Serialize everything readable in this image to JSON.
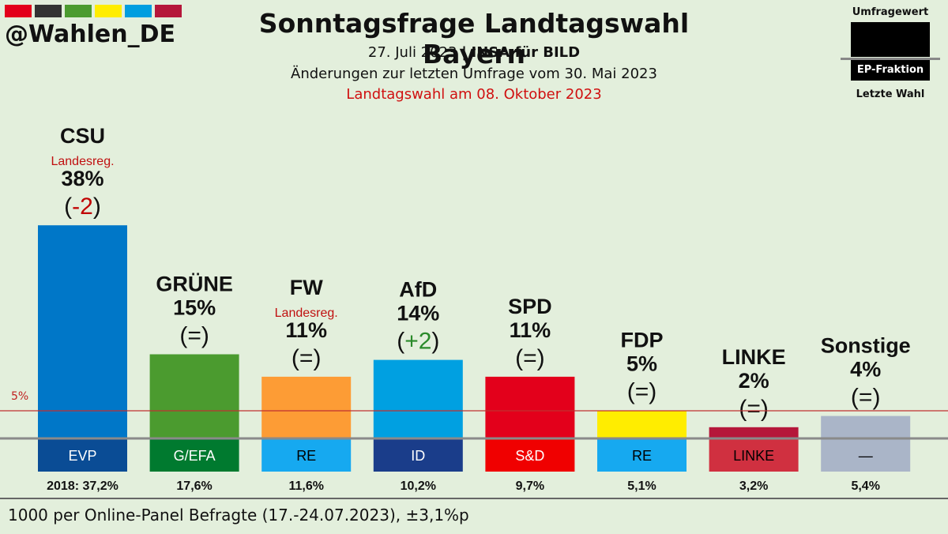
{
  "header": {
    "handle": "@Wahlen_DE",
    "title": "Sonntagsfrage Landtagswahl Bayern",
    "date": "27. Juli 2023",
    "separator": "|",
    "institute": "INSA für BILD",
    "changes": "Änderungen zur letzten Umfrage vom 30. Mai 2023",
    "election": "Landtagswahl am 08. Oktober 2023",
    "stripe_colors": [
      "#e3001b",
      "#333333",
      "#4b9b2f",
      "#ffed00",
      "#009ee0",
      "#b5173a"
    ]
  },
  "legend": {
    "top": "Umfragewert",
    "middle": "EP-Fraktion",
    "bottom": "Letzte Wahl"
  },
  "threshold_label": "5%",
  "footnote": "1000 per Online-Panel Befragte (17.-24.07.2023), ±3,1%p",
  "chart_data": {
    "type": "bar",
    "categories": [
      "CSU",
      "GRÜNE",
      "FW",
      "AfD",
      "SPD",
      "FDP",
      "LINKE",
      "Sonstige"
    ],
    "values": [
      38,
      15,
      11,
      14,
      11,
      5,
      2,
      4
    ],
    "value_labels": [
      "38%",
      "15%",
      "11%",
      "14%",
      "11%",
      "5%",
      "2%",
      "4%"
    ],
    "change_open": "(",
    "change_close": ")",
    "changes": [
      "-2",
      "=",
      "=",
      "+2",
      "=",
      "=",
      "=",
      "="
    ],
    "notes": [
      "Landesreg.",
      "",
      "Landesreg.",
      "",
      "",
      "",
      "",
      ""
    ],
    "ep_groups": [
      "EVP",
      "G/EFA",
      "RE",
      "ID",
      "S&D",
      "RE",
      "LINKE",
      "—"
    ],
    "last_election": [
      "2018: 37,2%",
      "17,6%",
      "11,6%",
      "10,2%",
      "9,7%",
      "5,1%",
      "3,2%",
      "5,4%"
    ],
    "threshold": 5,
    "colors": [
      "#0077c8",
      "#4b9b2f",
      "#fd9c35",
      "#00a0e1",
      "#e3001b",
      "#ffed00",
      "#b5173a",
      "#aab5c8"
    ],
    "ep_colors": [
      "#0a4c95",
      "#007a2f",
      "#16a9f0",
      "#1a3d8a",
      "#f00000",
      "#16a9f0",
      "#d03040",
      "#aab5c8"
    ],
    "ep_text_colors": [
      "#ffffff",
      "#ffffff",
      "#000000",
      "#ffffff",
      "#ffffff",
      "#000000",
      "#000000",
      "#000000"
    ],
    "change_colors": {
      "up": "#2a8a2a",
      "down": "#c00000",
      "same": "#111111"
    },
    "ylim": [
      0,
      40
    ]
  }
}
